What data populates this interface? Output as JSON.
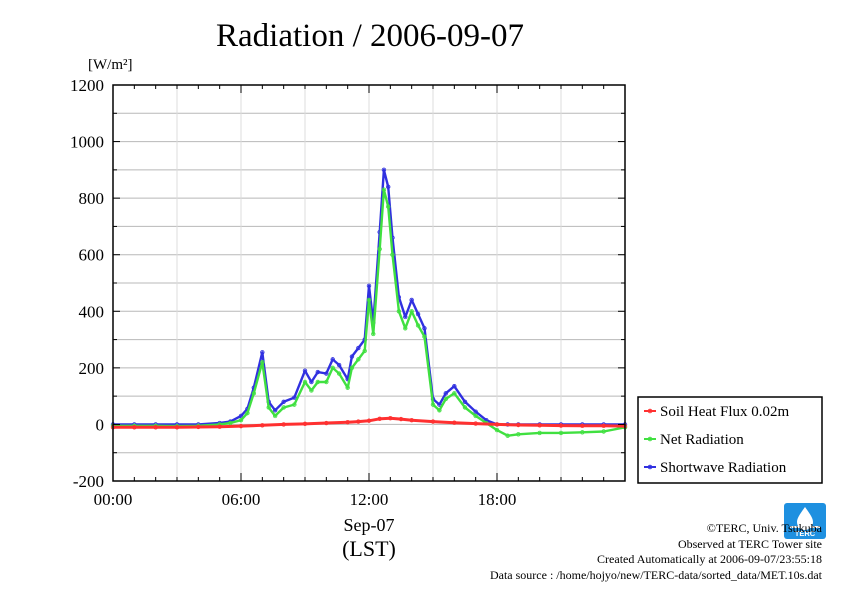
{
  "chart_data": {
    "type": "line",
    "title": "Radiation / 2006-09-07",
    "ylabel": "[W/m²]",
    "xlabel_date": "Sep-07",
    "xlabel_unit": "(LST)",
    "ylim": [
      -200,
      1200
    ],
    "xlim_hours": [
      0,
      24
    ],
    "y_ticks": [
      -200,
      0,
      200,
      400,
      600,
      800,
      1000,
      1200
    ],
    "y_tick_labels": [
      "-200",
      "0",
      "200",
      "400",
      "600",
      "800",
      "1000",
      "1200"
    ],
    "x_ticks_hours": [
      0,
      6,
      12,
      18
    ],
    "x_tick_labels": [
      "00:00",
      "06:00",
      "12:00",
      "18:00"
    ],
    "grid": true,
    "legend_position": "right",
    "series": [
      {
        "name": "Soil Heat Flux 0.02m",
        "color": "#ff3030",
        "x": [
          0,
          1,
          2,
          3,
          4,
          5,
          6,
          7,
          8,
          9,
          10,
          11,
          11.5,
          12,
          12.5,
          13,
          13.5,
          14,
          15,
          16,
          17,
          18,
          19,
          20,
          21,
          22,
          23,
          24
        ],
        "y": [
          -10,
          -10,
          -10,
          -10,
          -9,
          -8,
          -6,
          -3,
          0,
          2,
          5,
          8,
          10,
          13,
          20,
          22,
          19,
          15,
          10,
          6,
          3,
          0,
          -2,
          -3,
          -4,
          -5,
          -5,
          -6
        ]
      },
      {
        "name": "Net Radiation",
        "color": "#40e040",
        "x": [
          0,
          1,
          2,
          3,
          4,
          5,
          5.5,
          6,
          6.3,
          6.6,
          7,
          7.3,
          7.6,
          8,
          8.5,
          9,
          9.3,
          9.6,
          10,
          10.3,
          10.6,
          11,
          11.2,
          11.5,
          11.8,
          12,
          12.2,
          12.5,
          12.7,
          12.9,
          13.1,
          13.4,
          13.7,
          14,
          14.3,
          14.6,
          15,
          15.3,
          15.6,
          16,
          16.5,
          17,
          17.5,
          18,
          18.5,
          19,
          20,
          21,
          22,
          23,
          24
        ],
        "y": [
          -5,
          -5,
          -5,
          -6,
          -5,
          0,
          5,
          15,
          40,
          110,
          220,
          60,
          30,
          60,
          70,
          150,
          120,
          150,
          150,
          200,
          180,
          130,
          200,
          230,
          260,
          440,
          320,
          620,
          830,
          770,
          600,
          400,
          340,
          400,
          350,
          310,
          70,
          50,
          90,
          110,
          60,
          30,
          5,
          -20,
          -40,
          -35,
          -30,
          -30,
          -28,
          -25,
          -10
        ]
      },
      {
        "name": "Shortwave Radiation",
        "color": "#3030e0",
        "x": [
          0,
          1,
          2,
          3,
          4,
          5,
          5.5,
          6,
          6.3,
          6.6,
          7,
          7.3,
          7.6,
          8,
          8.5,
          9,
          9.3,
          9.6,
          10,
          10.3,
          10.6,
          11,
          11.2,
          11.5,
          11.8,
          12,
          12.2,
          12.5,
          12.7,
          12.9,
          13.1,
          13.4,
          13.7,
          14,
          14.3,
          14.6,
          15,
          15.3,
          15.6,
          16,
          16.5,
          17,
          17.5,
          18,
          18.5,
          19,
          20,
          21,
          22,
          23,
          24
        ],
        "y": [
          0,
          0,
          0,
          0,
          0,
          5,
          10,
          30,
          55,
          130,
          255,
          80,
          50,
          80,
          95,
          190,
          150,
          185,
          180,
          230,
          210,
          160,
          240,
          270,
          300,
          490,
          360,
          680,
          900,
          840,
          660,
          450,
          380,
          440,
          390,
          340,
          90,
          70,
          110,
          135,
          80,
          45,
          15,
          0,
          0,
          0,
          0,
          0,
          0,
          0,
          0
        ]
      }
    ]
  },
  "credits": {
    "copyright": "©TERC, Univ. Tsukuba",
    "site": "Observed at TERC Tower site",
    "created": "Created Automatically at 2006-09-07/23:55:18",
    "source": "Data source : /home/hojyo/new/TERC-data/sorted_data/MET.10s.dat"
  },
  "logo": {
    "text": "TERC",
    "color": "#1e90e0"
  }
}
